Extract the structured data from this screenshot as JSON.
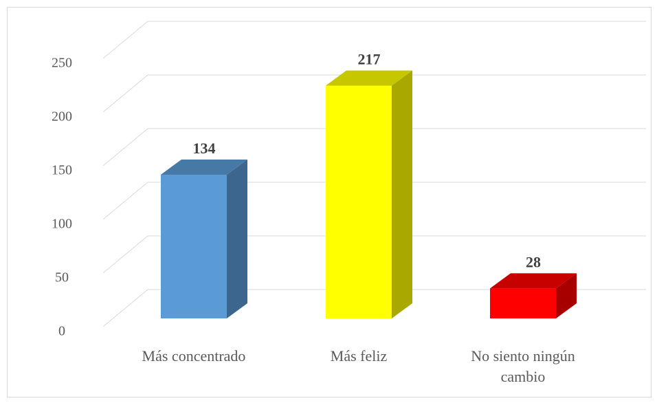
{
  "chart_data": {
    "type": "bar3d",
    "categories": [
      "Más concentrado",
      "Más feliz",
      "No siento ningún cambio"
    ],
    "values": [
      134,
      217,
      28
    ],
    "colors": [
      "#5b9bd5",
      "#ffff00",
      "#ff0000"
    ],
    "ylim": [
      0,
      250
    ],
    "yticks": [
      0,
      50,
      100,
      150,
      200,
      250
    ],
    "grid": true
  }
}
